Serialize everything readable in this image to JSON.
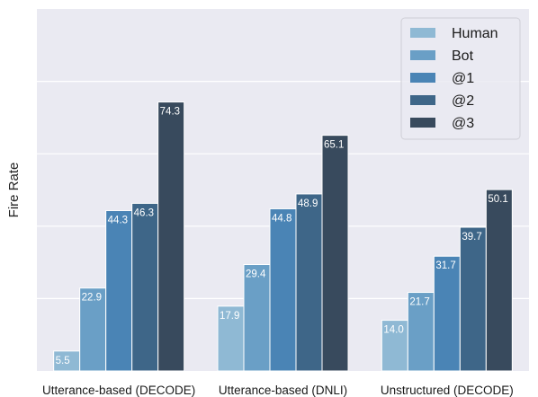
{
  "chart_data": {
    "type": "bar",
    "title": "",
    "xlabel": "",
    "ylabel": "Fire Rate",
    "ylim": [
      0,
      100
    ],
    "grid": true,
    "legend_position": "top-right",
    "categories": [
      "Utterance-based (DECODE)",
      "Utterance-based (DNLI)",
      "Unstructured (DECODE)"
    ],
    "series": [
      {
        "name": "Human",
        "color": "#8fb9d4",
        "values": [
          5.5,
          17.9,
          14.0
        ]
      },
      {
        "name": "Bot",
        "color": "#6a9fc6",
        "values": [
          22.9,
          29.4,
          21.7
        ]
      },
      {
        "name": "@1",
        "color": "#4a84b5",
        "values": [
          44.3,
          44.8,
          31.7
        ]
      },
      {
        "name": "@2",
        "color": "#3e6688",
        "values": [
          46.3,
          48.9,
          39.7
        ]
      },
      {
        "name": "@3",
        "color": "#384a5d",
        "values": [
          74.3,
          65.1,
          50.1
        ]
      }
    ],
    "background_color": "#eaeaf2",
    "grid_color": "#ffffff"
  }
}
